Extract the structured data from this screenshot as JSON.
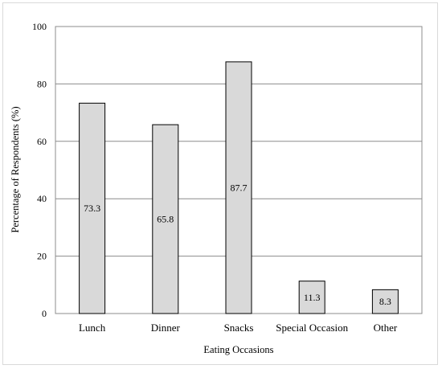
{
  "chart_data": {
    "type": "bar",
    "title": "",
    "xlabel": "Eating Occasions",
    "ylabel": "Percentage of Respondents (%)",
    "categories": [
      "Lunch",
      "Dinner",
      "Snacks",
      "Special Occasion",
      "Other"
    ],
    "values": [
      73.3,
      65.8,
      87.7,
      11.3,
      8.3
    ],
    "data_labels": [
      "73.3",
      "65.8",
      "87.7",
      "11.3",
      "8.3"
    ],
    "ylim": [
      0,
      100
    ],
    "yticks": [
      0,
      20,
      40,
      60,
      80,
      100
    ],
    "grid": true,
    "legend": "none",
    "colors": {
      "bar_fill": "#d9d9d9",
      "bar_stroke": "#000000",
      "gridline": "#8c8c8c",
      "frame_border": "#d9d9d9"
    }
  }
}
